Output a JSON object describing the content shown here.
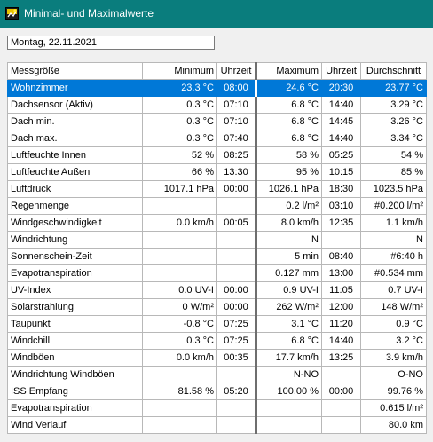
{
  "window": {
    "title": "Minimal- und Maximalwerte"
  },
  "date_field": {
    "value": "Montag, 22.11.2021"
  },
  "colors": {
    "titlebar": "#0a7d7d",
    "selection": "#0078d7"
  },
  "table": {
    "headers": [
      "Messgröße",
      "Minimum",
      "Uhrzeit",
      "Maximum",
      "Uhrzeit",
      "Durchschnitt"
    ],
    "rows": [
      [
        "Wohnzimmer",
        "23.3 °C",
        "08:00",
        "24.6 °C",
        "20:30",
        "23.77 °C"
      ],
      [
        "Dachsensor (Aktiv)",
        "0.3 °C",
        "07:10",
        "6.8 °C",
        "14:40",
        "3.29 °C"
      ],
      [
        "Dach min.",
        "0.3 °C",
        "07:10",
        "6.8 °C",
        "14:45",
        "3.26 °C"
      ],
      [
        "Dach max.",
        "0.3 °C",
        "07:40",
        "6.8 °C",
        "14:40",
        "3.34 °C"
      ],
      [
        "Luftfeuchte Innen",
        "52 %",
        "08:25",
        "58 %",
        "05:25",
        "54 %"
      ],
      [
        "Luftfeuchte Außen",
        "66 %",
        "13:30",
        "95 %",
        "10:15",
        "85 %"
      ],
      [
        "Luftdruck",
        "1017.1 hPa",
        "00:00",
        "1026.1 hPa",
        "18:30",
        "1023.5 hPa"
      ],
      [
        "Regenmenge",
        "",
        "",
        "0.2 l/m²",
        "03:10",
        "#0.200 l/m²"
      ],
      [
        "Windgeschwindigkeit",
        "0.0 km/h",
        "00:05",
        "8.0 km/h",
        "12:35",
        "1.1 km/h"
      ],
      [
        "Windrichtung",
        "",
        "",
        "N",
        "",
        "N"
      ],
      [
        "Sonnenschein-Zeit",
        "",
        "",
        "5 min",
        "08:40",
        "#6:40 h"
      ],
      [
        "Evapotranspiration",
        "",
        "",
        "0.127 mm",
        "13:00",
        "#0.534 mm"
      ],
      [
        "UV-Index",
        "0.0 UV-I",
        "00:00",
        "0.9 UV-I",
        "11:05",
        "0.7 UV-I"
      ],
      [
        "Solarstrahlung",
        "0 W/m²",
        "00:00",
        "262 W/m²",
        "12:00",
        "148 W/m²"
      ],
      [
        "Taupunkt",
        "-0.8 °C",
        "07:25",
        "3.1 °C",
        "11:20",
        "0.9 °C"
      ],
      [
        "Windchill",
        "0.3 °C",
        "07:25",
        "6.8 °C",
        "14:40",
        "3.2 °C"
      ],
      [
        "Windböen",
        "0.0 km/h",
        "00:35",
        "17.7 km/h",
        "13:25",
        "3.9 km/h"
      ],
      [
        "Windrichtung Windböen",
        "",
        "",
        "N-NO",
        "",
        "O-NO"
      ],
      [
        "ISS Empfang",
        "81.58 %",
        "05:20",
        "100.00 %",
        "00:00",
        "99.76 %"
      ],
      [
        "Evapotranspiration",
        "",
        "",
        "",
        "",
        "0.615 l/m²"
      ],
      [
        "Wind Verlauf",
        "",
        "",
        "",
        "",
        "80.0 km"
      ]
    ]
  }
}
